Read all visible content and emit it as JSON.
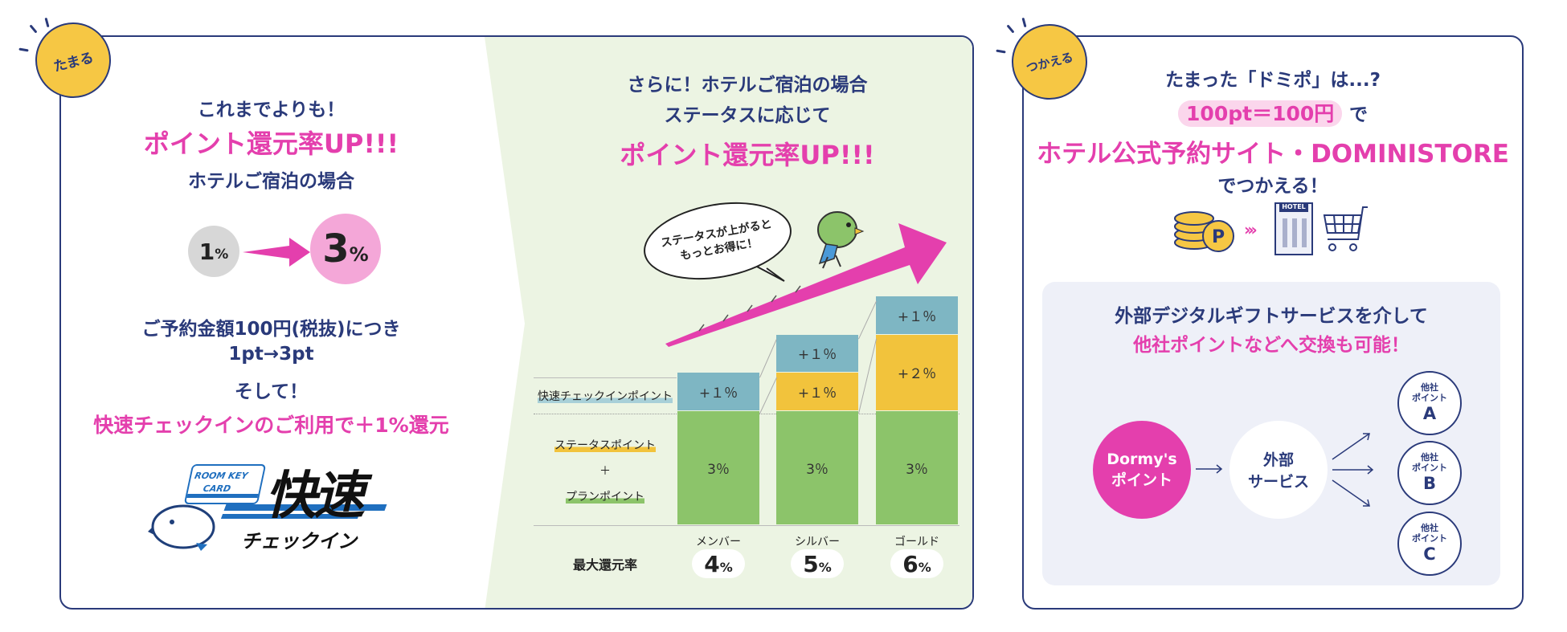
{
  "left": {
    "badge": "たまる",
    "intro": "これまでよりも！",
    "headline": "ポイント還元率UP!!!",
    "subhead": "ホテルご宿泊の場合",
    "rate_from": {
      "num": "1",
      "unit": "%"
    },
    "rate_to": {
      "num": "3",
      "unit": "%"
    },
    "line1": "ご予約金額100円(税抜)につき",
    "line2": "1pt→3pt",
    "line3": "そして！",
    "line4": "快速チェックインのご利用で＋1%還元",
    "logo": {
      "card_line1": "ROOM KEY",
      "card_line2": "CARD",
      "main": "快速",
      "sub": "チェックイン"
    }
  },
  "middle": {
    "title1": "さらに！ホテルご宿泊の場合",
    "title2": "ステータスに応じて",
    "headline": "ポイント還元率UP!!!",
    "bubble_line1": "ステータスが上がると",
    "bubble_line2": "もっとお得に！",
    "row_labels": {
      "checkin": "快速チェックインポイント",
      "status": "ステータスポイント",
      "plus": "＋",
      "plan": "プランポイント",
      "max": "最大還元率"
    }
  },
  "chart_data": {
    "type": "bar",
    "categories": [
      "メンバー",
      "シルバー",
      "ゴールド"
    ],
    "series": [
      {
        "name": "プランポイント＋ステータスポイント",
        "values": [
          3,
          3,
          3
        ],
        "labels": [
          "3％",
          "3％",
          "3％"
        ]
      },
      {
        "name": "ステータスポイント",
        "values": [
          0,
          1,
          2
        ],
        "labels": [
          "",
          "+１％",
          "+２％"
        ]
      },
      {
        "name": "快速チェックインポイント",
        "values": [
          1,
          1,
          1
        ],
        "labels": [
          "+１％",
          "+１％",
          "+１％"
        ]
      }
    ],
    "totals": [
      {
        "num": "4",
        "unit": "%"
      },
      {
        "num": "5",
        "unit": "%"
      },
      {
        "num": "6",
        "unit": "%"
      }
    ],
    "colors": {
      "base": "#8cc46a",
      "status": "#f2c33c",
      "checkin": "#7eb6c3"
    }
  },
  "right": {
    "badge": "つかえる",
    "line1": "たまった「ドミポ」は...?",
    "highlight": "100pt＝100円",
    "highlight_suffix": "で",
    "headline": "ホテル公式予約サイト・DOMINISTORE",
    "line3": "でつかえる！",
    "icon_hotel_label": "HOTEL",
    "gift": {
      "title": "外部デジタルギフトサービスを介して",
      "subtitle": "他社ポイントなどへ交換も可能！",
      "source_line1": "Dormy's",
      "source_line2": "ポイント",
      "mid_line1": "外部",
      "mid_line2": "サービス",
      "targets": [
        {
          "line1": "他社",
          "line2": "ポイント",
          "letter": "A"
        },
        {
          "line1": "他社",
          "line2": "ポイント",
          "letter": "B"
        },
        {
          "line1": "他社",
          "line2": "ポイント",
          "letter": "C"
        }
      ]
    }
  }
}
